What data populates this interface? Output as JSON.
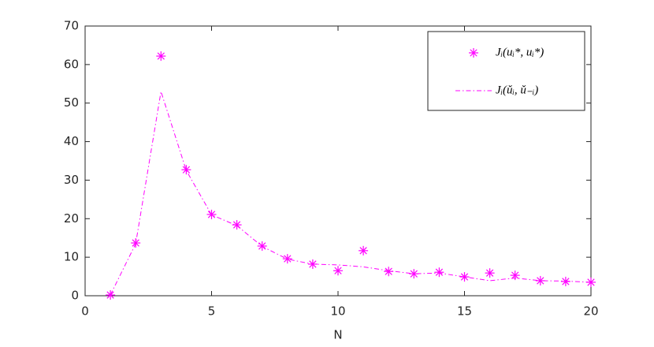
{
  "chart_data": {
    "type": "line",
    "x_label": "N",
    "x": [
      1,
      2,
      3,
      4,
      5,
      6,
      7,
      8,
      9,
      10,
      11,
      12,
      13,
      14,
      15,
      16,
      17,
      18,
      19,
      20
    ],
    "series": [
      {
        "name": "Jᵢ(uᵢ*, uᵢ*)",
        "color": "#ff00ff",
        "style": "marker",
        "values": [
          0.2,
          13.7,
          62.2,
          32.7,
          21.1,
          18.4,
          12.9,
          9.6,
          8.2,
          6.5,
          11.7,
          6.3,
          5.7,
          6.1,
          4.9,
          5.9,
          5.3,
          3.9,
          3.7,
          3.5
        ]
      },
      {
        "name": "Jᵢ(ǔᵢ, ǔ₋ᵢ)",
        "color": "#ff00ff",
        "style": "dashdot",
        "values": [
          0.2,
          13.5,
          53.0,
          32.5,
          21.0,
          18.2,
          12.8,
          9.5,
          8.2,
          8.0,
          7.5,
          6.5,
          5.7,
          5.9,
          4.9,
          3.9,
          4.6,
          3.9,
          3.8,
          3.5
        ]
      }
    ],
    "xlim": [
      0,
      20
    ],
    "xticks": [
      0,
      5,
      10,
      15,
      20
    ],
    "ylim": [
      0,
      70
    ],
    "yticks": [
      0,
      10,
      20,
      30,
      40,
      50,
      60,
      70
    ],
    "legend": "upper right",
    "grid": false
  }
}
